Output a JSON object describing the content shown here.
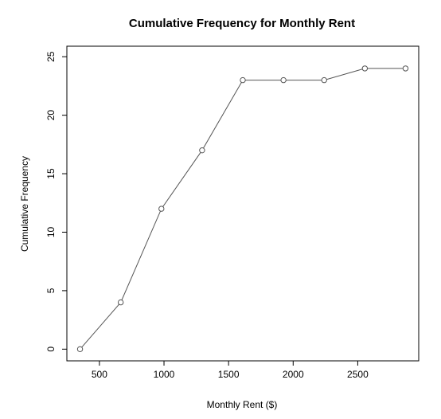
{
  "chart_data": {
    "type": "line",
    "title": "Cumulative Frequency for Monthly Rent",
    "xlabel": "Monthly Rent ($)",
    "ylabel": "Cumulative Frequency",
    "x": [
      350,
      665,
      980,
      1295,
      1610,
      1925,
      2240,
      2555,
      2870
    ],
    "y": [
      0,
      4,
      12,
      17,
      23,
      23,
      23,
      24,
      24
    ],
    "xlim": [
      248,
      2972
    ],
    "ylim": [
      -1,
      25.9
    ],
    "xticks": [
      "500",
      "1000",
      "1500",
      "2000",
      "2500"
    ],
    "yticks": [
      "0",
      "5",
      "10",
      "15",
      "20",
      "25"
    ],
    "markers": "open-circle",
    "grid": false,
    "line_color": "#555555",
    "marker_color": "#555555"
  }
}
